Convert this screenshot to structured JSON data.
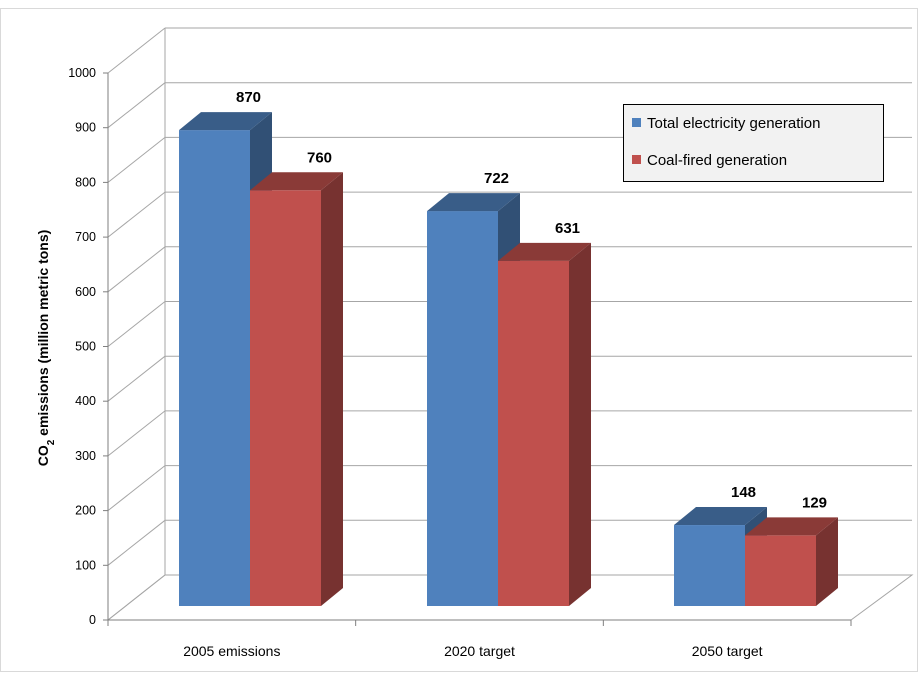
{
  "chart_data": {
    "type": "bar",
    "categories": [
      "2005 emissions",
      "2020 target",
      "2050 target"
    ],
    "series": [
      {
        "name": "Total electricity generation",
        "values": [
          870,
          722,
          148
        ],
        "color": "#4F81BD"
      },
      {
        "name": "Coal-fired generation",
        "values": [
          760,
          631,
          129
        ],
        "color": "#C0504D"
      }
    ],
    "ylabel_main": "CO",
    "ylabel_sub": "2",
    "ylabel_rest": " emissions (million metric tons)",
    "xlabel": "",
    "ylim": [
      0,
      1000
    ],
    "yticks": [
      "0",
      "100",
      "200",
      "300",
      "400",
      "500",
      "600",
      "700",
      "800",
      "900",
      "1000"
    ],
    "grid": true,
    "legend_position": "top-right",
    "style": "3d-clustered-column"
  }
}
